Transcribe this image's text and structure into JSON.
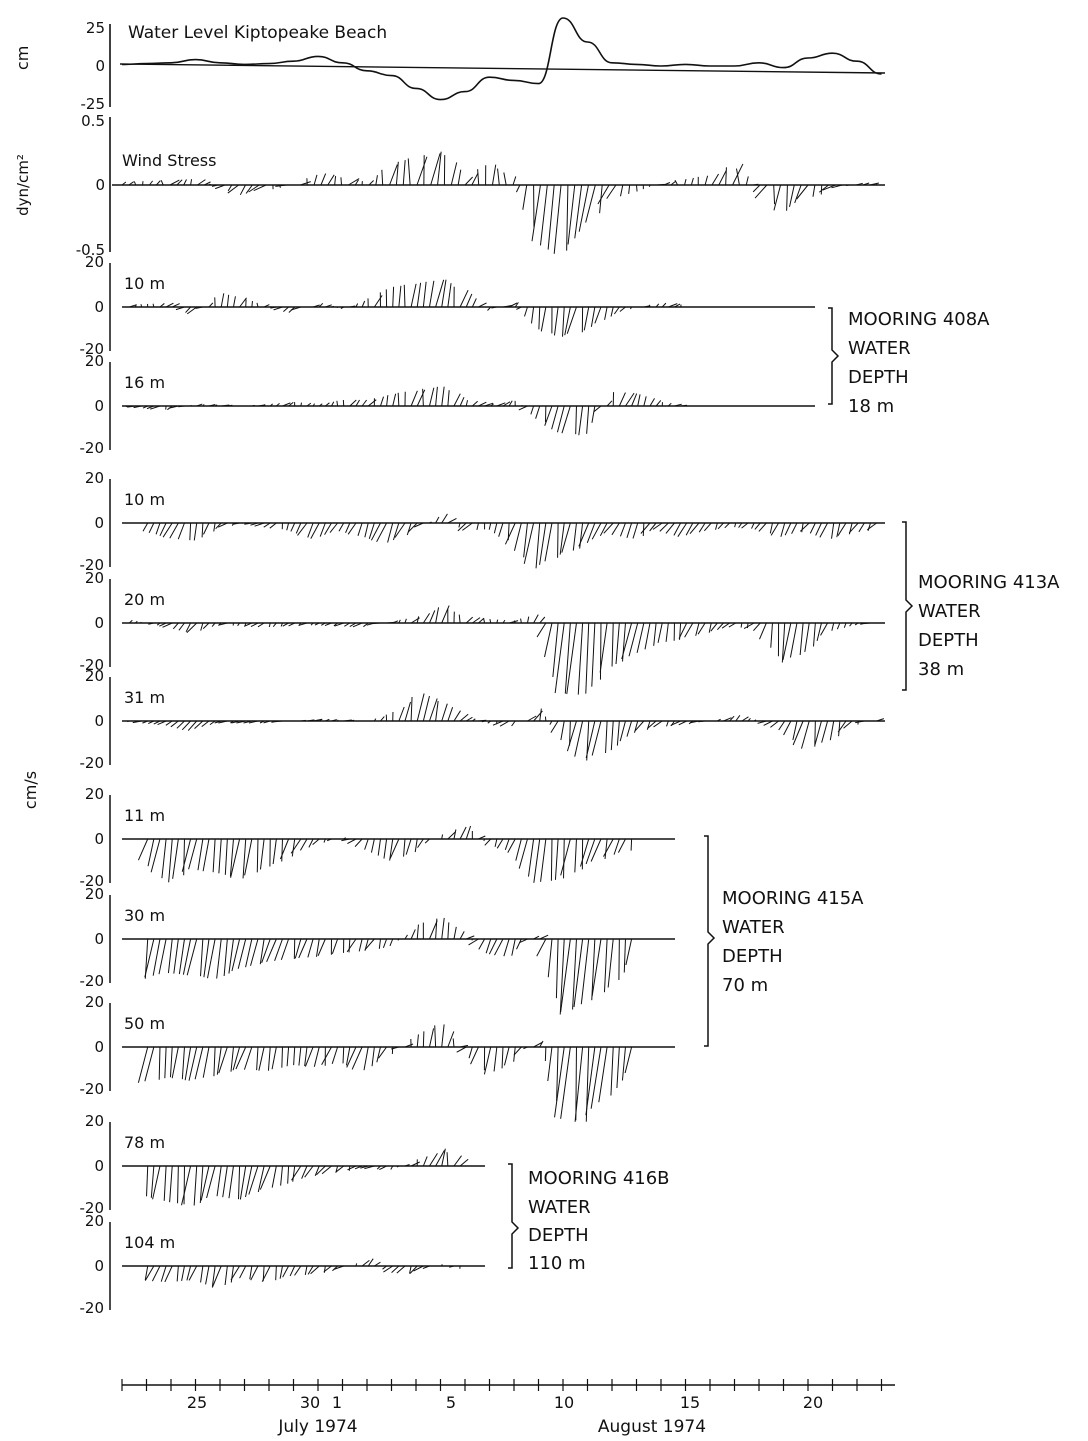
{
  "colors": {
    "ink": "#111111",
    "background": "#ffffff"
  },
  "chart_data": {
    "type": "stickplot",
    "x_axis": {
      "tick_labels": [
        {
          "label": "25",
          "day": 25
        },
        {
          "label": "30",
          "day": 30
        },
        {
          "label": "1",
          "day": 31
        },
        {
          "label": "5",
          "day": 35
        },
        {
          "label": "10",
          "day": 40
        },
        {
          "label": "15",
          "day": 45
        },
        {
          "label": "20",
          "day": 50
        }
      ],
      "month_labels": [
        {
          "label": "July 1974",
          "day": 32
        },
        {
          "label": "August 1974",
          "day": 43
        }
      ],
      "range_days": [
        22,
        53
      ]
    },
    "water_level": {
      "label": "Water Level Kiptopeake Beach",
      "unit": "cm",
      "ticks": [
        "25",
        "0",
        "-25"
      ],
      "ylim": [
        -25,
        25
      ],
      "series": [
        [
          22,
          1
        ],
        [
          23,
          1.5
        ],
        [
          24,
          2
        ],
        [
          25,
          4
        ],
        [
          26,
          2
        ],
        [
          27,
          1
        ],
        [
          28,
          1.5
        ],
        [
          29,
          3
        ],
        [
          30,
          6
        ],
        [
          31,
          2
        ],
        [
          32,
          -3
        ],
        [
          33,
          -6
        ],
        [
          34,
          -14
        ],
        [
          35,
          -21
        ],
        [
          36,
          -16
        ],
        [
          37,
          -7
        ],
        [
          38,
          -9
        ],
        [
          39,
          -11
        ],
        [
          40,
          30
        ],
        [
          41,
          15
        ],
        [
          42,
          2
        ],
        [
          43,
          1
        ],
        [
          44,
          0
        ],
        [
          45,
          1
        ],
        [
          46,
          0
        ],
        [
          47,
          0
        ],
        [
          48,
          2
        ],
        [
          49,
          -1
        ],
        [
          50,
          5
        ],
        [
          51,
          8
        ],
        [
          52,
          3
        ],
        [
          53,
          -5
        ]
      ]
    },
    "wind_stress": {
      "label": "Wind Stress",
      "unit": "dyn/cm²",
      "ticks": [
        "0.5",
        "0",
        "-0.5"
      ],
      "ylim": [
        -0.5,
        0.5
      ]
    },
    "current_unit": "cm/s",
    "moorings": [
      {
        "name": "MOORING 408A",
        "depth_line1": "WATER",
        "depth_line2": "DEPTH",
        "depth": "18 m",
        "panels": [
          {
            "depth": "10 m",
            "ticks": [
              "20",
              "0",
              "-20"
            ],
            "ylim": [
              -20,
              20
            ]
          },
          {
            "depth": "16 m",
            "ticks": [
              "20",
              "0",
              "-20"
            ],
            "ylim": [
              -20,
              20
            ]
          }
        ]
      },
      {
        "name": "MOORING 413A",
        "depth_line1": "WATER",
        "depth_line2": "DEPTH",
        "depth": "38 m",
        "panels": [
          {
            "depth": "10 m",
            "ticks": [
              "20",
              "0",
              "-20"
            ],
            "ylim": [
              -20,
              20
            ]
          },
          {
            "depth": "20 m",
            "ticks": [
              "20",
              "0",
              "-20"
            ],
            "ylim": [
              -20,
              20
            ]
          },
          {
            "depth": "31 m",
            "ticks": [
              "20",
              "0",
              "-20"
            ],
            "ylim": [
              -20,
              20
            ]
          }
        ]
      },
      {
        "name": "MOORING 415A",
        "depth_line1": "WATER",
        "depth_line2": "DEPTH",
        "depth": "70 m",
        "panels": [
          {
            "depth": "11 m",
            "ticks": [
              "20",
              "0",
              "-20"
            ],
            "ylim": [
              -20,
              20
            ]
          },
          {
            "depth": "30 m",
            "ticks": [
              "20",
              "0",
              "-20"
            ],
            "ylim": [
              -20,
              20
            ]
          },
          {
            "depth": "50 m",
            "ticks": [
              "20",
              "0",
              "-20"
            ],
            "ylim": [
              -20,
              20
            ]
          }
        ]
      },
      {
        "name": "MOORING 416B",
        "depth_line1": "WATER",
        "depth_line2": "DEPTH",
        "depth": "110 m",
        "panels": [
          {
            "depth": "78 m",
            "ticks": [
              "20",
              "0",
              "-20"
            ],
            "ylim": [
              -20,
              20
            ]
          },
          {
            "depth": "104 m",
            "ticks": [
              "20",
              "0",
              "-20"
            ],
            "ylim": [
              -20,
              20
            ]
          }
        ]
      }
    ]
  }
}
